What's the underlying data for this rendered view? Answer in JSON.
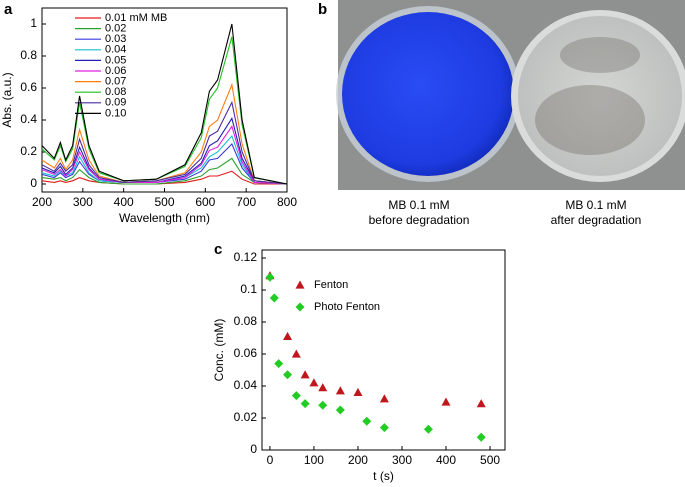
{
  "chart_data": [
    {
      "type": "line",
      "label": "a",
      "xlabel": "Wavelength (nm)",
      "ylabel": "Abs. (a.u.)",
      "x": [
        200,
        230,
        245,
        258,
        275,
        292,
        315,
        340,
        400,
        480,
        550,
        590,
        610,
        630,
        665,
        690,
        720,
        800
      ],
      "xlim": [
        200,
        800
      ],
      "xticks": [
        200,
        300,
        400,
        500,
        600,
        700,
        800
      ],
      "ylim": [
        -0.05,
        1.1
      ],
      "yticks": [
        0,
        0.2,
        0.4,
        0.6,
        0.8,
        1
      ],
      "series": [
        {
          "name": "0.01 mM MB",
          "color": "#e41a1c",
          "values": [
            0.02,
            0.01,
            0.02,
            0.01,
            0.02,
            0.04,
            0.02,
            0.01,
            0,
            0,
            0.01,
            0.03,
            0.05,
            0.05,
            0.08,
            0.03,
            0,
            0
          ]
        },
        {
          "name": "0.02",
          "color": "#2ca02c",
          "values": [
            0.04,
            0.03,
            0.04,
            0.02,
            0.04,
            0.09,
            0.04,
            0.01,
            0,
            0,
            0.02,
            0.05,
            0.09,
            0.1,
            0.16,
            0.06,
            0.01,
            0
          ]
        },
        {
          "name": "0.03",
          "color": "#3a3adf",
          "values": [
            0.06,
            0.04,
            0.07,
            0.04,
            0.06,
            0.14,
            0.06,
            0.02,
            0.01,
            0.01,
            0.03,
            0.08,
            0.15,
            0.16,
            0.25,
            0.1,
            0.01,
            0
          ]
        },
        {
          "name": "0.04",
          "color": "#17becf",
          "values": [
            0.07,
            0.05,
            0.08,
            0.05,
            0.07,
            0.17,
            0.07,
            0.02,
            0.01,
            0.01,
            0.04,
            0.1,
            0.17,
            0.2,
            0.3,
            0.12,
            0.01,
            0
          ]
        },
        {
          "name": "0.05",
          "color": "#1f1fb4",
          "values": [
            0.1,
            0.07,
            0.11,
            0.06,
            0.1,
            0.23,
            0.1,
            0.03,
            0.01,
            0.01,
            0.05,
            0.13,
            0.24,
            0.27,
            0.41,
            0.16,
            0.02,
            0
          ]
        },
        {
          "name": "0.06",
          "color": "#e020e0",
          "values": [
            0.09,
            0.06,
            0.09,
            0.05,
            0.09,
            0.2,
            0.09,
            0.03,
            0.01,
            0.01,
            0.04,
            0.12,
            0.21,
            0.23,
            0.36,
            0.14,
            0.01,
            0
          ]
        },
        {
          "name": "0.07",
          "color": "#ff7f0e",
          "values": [
            0.15,
            0.1,
            0.16,
            0.09,
            0.15,
            0.34,
            0.15,
            0.05,
            0.01,
            0.02,
            0.07,
            0.2,
            0.36,
            0.4,
            0.62,
            0.25,
            0.02,
            0
          ]
        },
        {
          "name": "0.08",
          "color": "#22c022",
          "values": [
            0.22,
            0.15,
            0.24,
            0.14,
            0.22,
            0.51,
            0.22,
            0.07,
            0.02,
            0.03,
            0.11,
            0.29,
            0.53,
            0.6,
            0.92,
            0.37,
            0.04,
            0
          ]
        },
        {
          "name": "0.09",
          "color": "#4b2ca0",
          "values": [
            0.12,
            0.08,
            0.13,
            0.08,
            0.12,
            0.28,
            0.12,
            0.04,
            0.01,
            0.02,
            0.06,
            0.16,
            0.3,
            0.33,
            0.51,
            0.2,
            0.02,
            0
          ]
        },
        {
          "name": "0.10",
          "color": "#000000",
          "values": [
            0.24,
            0.16,
            0.26,
            0.15,
            0.24,
            0.55,
            0.24,
            0.08,
            0.02,
            0.03,
            0.12,
            0.32,
            0.58,
            0.65,
            1.0,
            0.4,
            0.04,
            0
          ]
        }
      ]
    },
    {
      "type": "scatter",
      "label": "c",
      "xlabel": "t (s)",
      "ylabel": "Conc. (mM)",
      "xlim": [
        -18,
        534
      ],
      "xticks": [
        0,
        100,
        200,
        300,
        400,
        500
      ],
      "ylim": [
        0,
        0.125
      ],
      "yticks": [
        0,
        0.02,
        0.04,
        0.06,
        0.08,
        0.1,
        0.12
      ],
      "series": [
        {
          "name": "Fenton",
          "color": "#c0171c",
          "marker": "triangle",
          "x": [
            0,
            40,
            60,
            80,
            100,
            120,
            160,
            200,
            260,
            400,
            480
          ],
          "values": [
            0.109,
            0.071,
            0.06,
            0.047,
            0.042,
            0.039,
            0.037,
            0.036,
            0.032,
            0.03,
            0.029
          ]
        },
        {
          "name": "Photo Fenton",
          "color": "#22cc22",
          "marker": "diamond",
          "x": [
            0,
            10,
            20,
            40,
            60,
            80,
            120,
            160,
            220,
            260,
            360,
            480
          ],
          "values": [
            0.108,
            0.095,
            0.054,
            0.047,
            0.034,
            0.029,
            0.028,
            0.025,
            0.018,
            0.014,
            0.013,
            0.008
          ]
        }
      ]
    }
  ],
  "photo": {
    "label": "b",
    "captions": [
      [
        "MB 0.1 mM",
        "before degradation"
      ],
      [
        "MB 0.1 mM",
        "after degradation"
      ]
    ]
  }
}
